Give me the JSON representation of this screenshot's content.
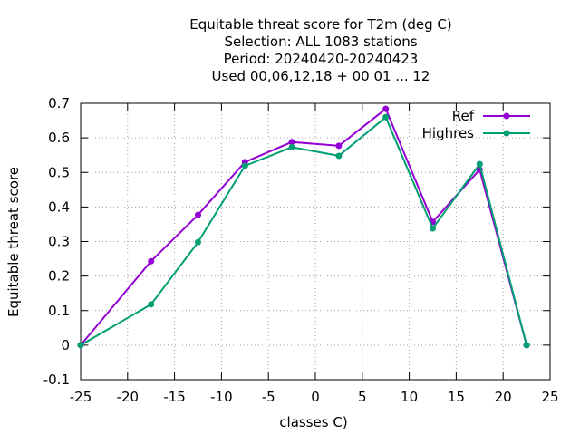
{
  "chart_data": {
    "type": "line",
    "title_lines": [
      "Equitable threat score  for T2m (deg C)",
      "Selection: ALL   1083 stations",
      "Period: 20240420-20240423",
      "Used  00,06,12,18 + 00 01 ... 12"
    ],
    "xlabel": "classes C)",
    "ylabel": "Equitable threat score",
    "xlim": [
      -25,
      25
    ],
    "ylim": [
      -0.1,
      0.7
    ],
    "xticks": [
      -25,
      -20,
      -15,
      -10,
      -5,
      0,
      5,
      10,
      15,
      20,
      25
    ],
    "yticks": [
      -0.1,
      0,
      0.1,
      0.2,
      0.3,
      0.4,
      0.5,
      0.6,
      0.7
    ],
    "xtick_labels": [
      "-25",
      "-20",
      "-15",
      "-10",
      "-5",
      "0",
      "5",
      "10",
      "15",
      "20",
      "25"
    ],
    "ytick_labels": [
      "-0.1",
      "0",
      "0.1",
      "0.2",
      "0.3",
      "0.4",
      "0.5",
      "0.6",
      "0.7"
    ],
    "grid": true,
    "legend_position": "top-right",
    "x": [
      -25,
      -17.5,
      -12.5,
      -7.5,
      -2.5,
      2.5,
      7.5,
      12.5,
      17.5,
      22.5
    ],
    "series": [
      {
        "name": "Ref",
        "color": "#9400d3",
        "values": [
          0.0,
          0.243,
          0.377,
          0.53,
          0.588,
          0.577,
          0.684,
          0.357,
          0.508,
          0.0
        ]
      },
      {
        "name": "Highres",
        "color": "#009e73",
        "values": [
          0.0,
          0.118,
          0.298,
          0.519,
          0.573,
          0.548,
          0.66,
          0.338,
          0.524,
          0.0
        ]
      }
    ]
  }
}
